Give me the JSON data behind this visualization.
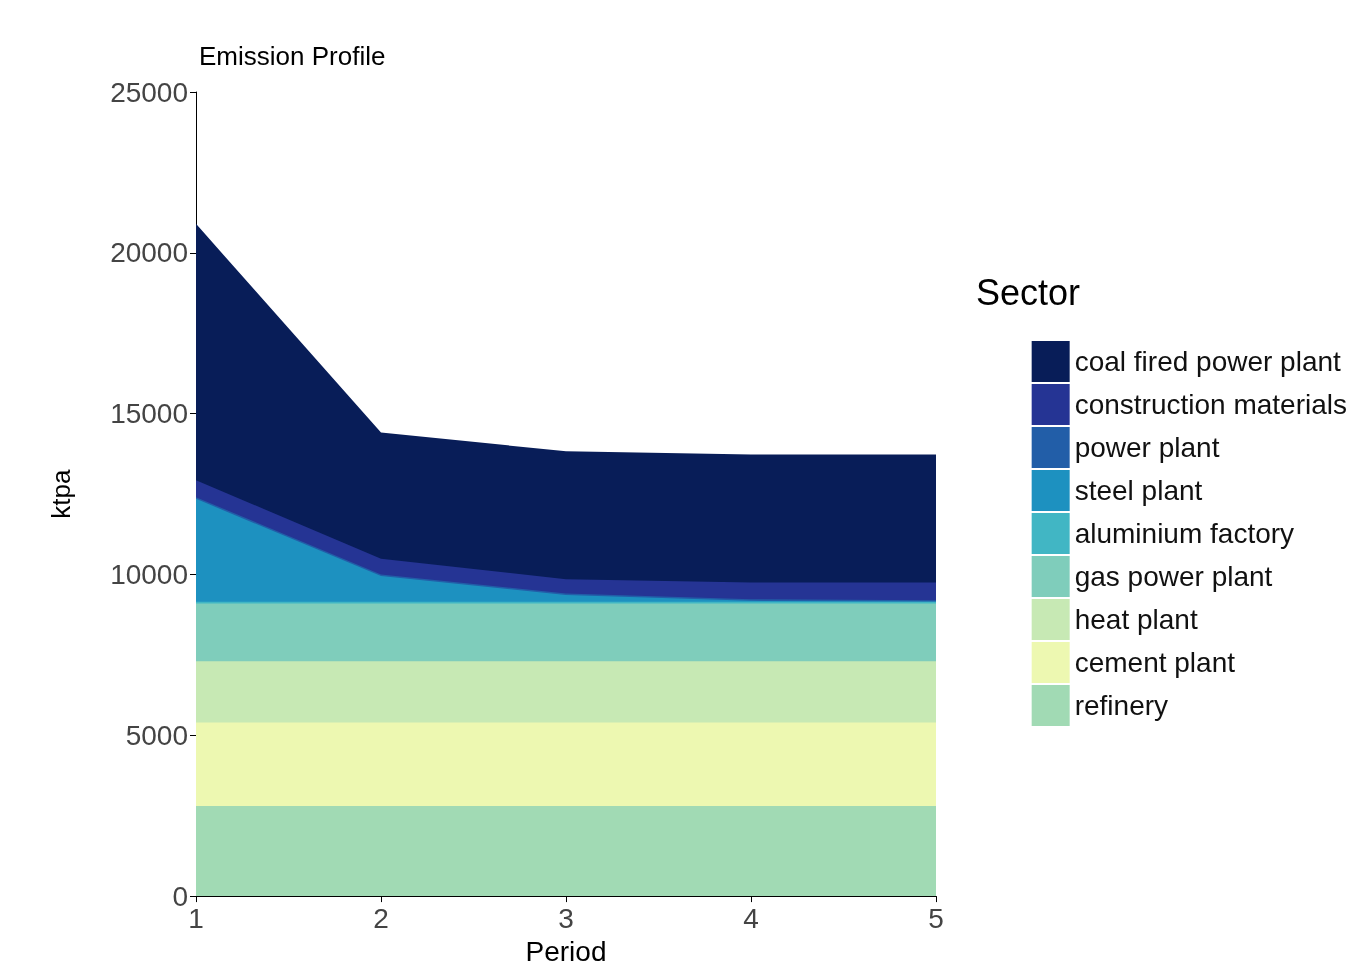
{
  "chart_data": {
    "type": "area",
    "stacked": true,
    "title": "Emission Profile",
    "xlabel": "Period",
    "ylabel": "ktpa",
    "legend_title": "Sector",
    "legend": "right",
    "grid": false,
    "x": [
      1,
      2,
      3,
      4,
      5
    ],
    "xlim": [
      1,
      5
    ],
    "xticks": [
      1,
      2,
      3,
      4,
      5
    ],
    "ylim": [
      0,
      25000
    ],
    "yticks": [
      0,
      5000,
      10000,
      15000,
      20000,
      25000
    ],
    "series": [
      {
        "name": "refinery",
        "color": "#a1dab4",
        "values": [
          2800,
          2800,
          2800,
          2800,
          2800
        ]
      },
      {
        "name": "cement plant",
        "color": "#edf8b1",
        "values": [
          2600,
          2600,
          2600,
          2600,
          2600
        ]
      },
      {
        "name": "heat plant",
        "color": "#c7e9b4",
        "values": [
          1900,
          1900,
          1900,
          1900,
          1900
        ]
      },
      {
        "name": "gas power plant",
        "color": "#7fcdbb",
        "values": [
          1800,
          1800,
          1800,
          1800,
          1800
        ]
      },
      {
        "name": "aluminium factory",
        "color": "#41b6c4",
        "values": [
          50,
          50,
          50,
          50,
          50
        ]
      },
      {
        "name": "steel plant",
        "color": "#1d91c0",
        "values": [
          3200,
          800,
          210,
          30,
          0
        ]
      },
      {
        "name": "power plant",
        "color": "#225ea8",
        "values": [
          50,
          50,
          50,
          50,
          50
        ]
      },
      {
        "name": "construction materials",
        "color": "#253494",
        "values": [
          530,
          490,
          440,
          520,
          550
        ]
      },
      {
        "name": "coal fired power plant",
        "color": "#081d58",
        "values": [
          7970,
          3920,
          3980,
          3980,
          3980
        ]
      }
    ]
  }
}
